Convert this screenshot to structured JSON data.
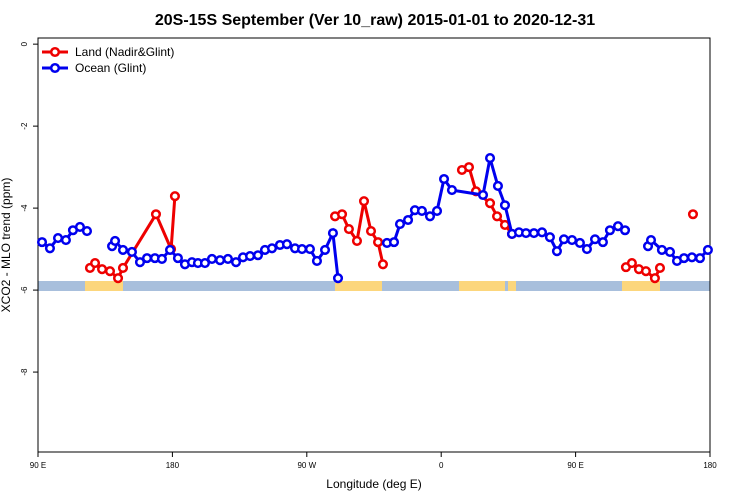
{
  "chart_data": {
    "type": "line",
    "title": "20S-15S September (Ver 10_raw)   2015-01-01 to 2020-12-31",
    "x_label": "Longitude (deg E)",
    "y_label": "XCO2 - MLO trend (ppm)",
    "xlim": [
      90,
      540
    ],
    "ylim": [
      -9.95,
      0.15
    ],
    "xticks": [
      {
        "value": 90,
        "label": "90 E"
      },
      {
        "value": 180,
        "label": "180"
      },
      {
        "value": 270,
        "label": "90 W"
      },
      {
        "value": 360,
        "label": "0"
      },
      {
        "value": 450,
        "label": "90 E"
      },
      {
        "value": 540,
        "label": "180"
      }
    ],
    "yticks": [
      0,
      -2,
      -4,
      -6,
      -8
    ],
    "legend": "top-left",
    "series": [
      {
        "name": "Land (Nadir&Glint)",
        "color": "#ee0000",
        "x": [
          124.8,
          128.2,
          132.9,
          138.2,
          143.6,
          146.9,
          169.0,
          179.1,
          181.7,
          null,
          288.9,
          293.6,
          298.2,
          303.6,
          308.3,
          313.0,
          317.7,
          321.0,
          null,
          373.9,
          378.6,
          383.3,
          392.7,
          397.4,
          402.7,
          407.4,
          null,
          483.7,
          487.7,
          492.4,
          497.1,
          503.1,
          506.5,
          null,
          528.6
        ],
        "values": [
          -5.46,
          -5.34,
          -5.49,
          -5.54,
          -5.71,
          -5.46,
          -4.15,
          -5.0,
          -3.71,
          null,
          -4.2,
          -4.15,
          -4.51,
          -4.8,
          -3.83,
          -4.56,
          -4.83,
          -5.37,
          null,
          -3.07,
          -3.0,
          -3.59,
          -3.88,
          -4.2,
          -4.41,
          -4.63,
          null,
          -5.44,
          -5.34,
          -5.49,
          -5.54,
          -5.71,
          -5.46,
          null,
          -4.15
        ]
      },
      {
        "name": "Ocean (Glint)",
        "color": "#0000ee",
        "x": [
          92.7,
          98.0,
          103.4,
          108.7,
          113.4,
          118.1,
          122.8,
          null,
          139.6,
          141.6,
          146.9,
          152.9,
          158.3,
          163.0,
          168.3,
          173.0,
          178.4,
          183.7,
          188.4,
          193.1,
          197.1,
          201.8,
          206.5,
          211.9,
          217.2,
          222.6,
          227.3,
          232.0,
          237.3,
          242.0,
          246.7,
          252.0,
          256.7,
          262.1,
          266.8,
          272.1,
          276.8,
          282.2,
          287.5,
          290.9,
          null,
          323.7,
          328.4,
          332.4,
          337.8,
          342.4,
          347.1,
          352.5,
          357.2,
          361.9,
          367.2,
          388.0,
          392.7,
          398.0,
          402.7,
          407.4,
          412.1,
          416.8,
          422.1,
          427.5,
          432.8,
          437.5,
          442.2,
          447.6,
          452.9,
          457.6,
          463.0,
          468.3,
          473.0,
          478.4,
          483.1,
          null,
          498.5,
          500.5,
          507.8,
          513.2,
          517.9,
          522.6,
          527.9,
          533.3,
          538.6
        ],
        "values": [
          -4.83,
          -4.98,
          -4.73,
          -4.78,
          -4.54,
          -4.46,
          -4.56,
          null,
          -4.93,
          -4.8,
          -5.02,
          -5.07,
          -5.32,
          -5.22,
          -5.22,
          -5.24,
          -5.02,
          -5.22,
          -5.37,
          -5.32,
          -5.34,
          -5.34,
          -5.24,
          -5.27,
          -5.24,
          -5.32,
          -5.2,
          -5.17,
          -5.15,
          -5.02,
          -4.98,
          -4.9,
          -4.88,
          -4.98,
          -5.0,
          -5.0,
          -5.29,
          -5.02,
          -4.61,
          -5.71,
          null,
          -4.85,
          -4.83,
          -4.39,
          -4.29,
          -4.05,
          -4.07,
          -4.2,
          -4.07,
          -3.29,
          -3.56,
          -3.68,
          -2.78,
          -3.46,
          -3.93,
          -4.63,
          -4.59,
          -4.61,
          -4.61,
          -4.59,
          -4.71,
          -5.05,
          -4.76,
          -4.78,
          -4.85,
          -5.0,
          -4.76,
          -4.83,
          -4.54,
          -4.44,
          -4.54,
          null,
          -4.93,
          -4.78,
          -5.02,
          -5.07,
          -5.29,
          -5.22,
          -5.2,
          -5.22,
          -5.02
        ]
      }
    ]
  }
}
